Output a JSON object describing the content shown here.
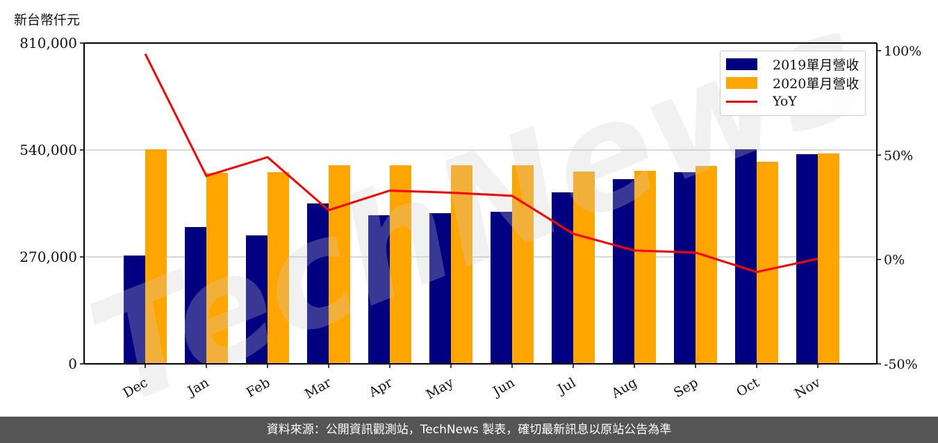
{
  "chart_data": {
    "type": "bar",
    "title": "",
    "unit_label": "新台幣仟元",
    "xlabel": "",
    "ylabel": "新台幣仟元",
    "y2label": "YoY",
    "categories": [
      "Dec",
      "Jan",
      "Feb",
      "Mar",
      "Apr",
      "May",
      "Jun",
      "Jul",
      "Aug",
      "Sep",
      "Oct",
      "Nov"
    ],
    "series": [
      {
        "name": "2019單月營收",
        "kind": "bar",
        "color": "#000080",
        "values": [
          273500,
          345400,
          324300,
          405000,
          375200,
          380400,
          383900,
          433000,
          466300,
          483900,
          541700,
          529400
        ]
      },
      {
        "name": "2020單月營收",
        "kind": "bar",
        "color": "#FFA500",
        "values": [
          541700,
          482100,
          483900,
          501400,
          501400,
          501400,
          501400,
          485600,
          487400,
          499700,
          510200,
          531200
        ]
      },
      {
        "name": "YoY",
        "kind": "line",
        "axis": "right",
        "color": "#FF0000",
        "values": [
          98.5,
          40.0,
          49.0,
          23.6,
          33.0,
          32.0,
          30.5,
          12.3,
          4.3,
          3.3,
          -6.0,
          0.3
        ]
      }
    ],
    "ylim": [
      0,
      810000
    ],
    "yticks": [
      0,
      270000,
      540000,
      810000
    ],
    "ytick_labels": [
      "0",
      "270,000",
      "540,000",
      "810,000"
    ],
    "y2lim": [
      -50,
      100
    ],
    "y2ticks": [
      -50,
      0,
      50,
      100
    ],
    "y2tick_labels": [
      "-50%",
      "0%",
      "50%",
      "100%"
    ],
    "grid": "horizontal",
    "legend_position": "upper right",
    "watermark": "TechNews"
  },
  "legend": {
    "items": [
      {
        "label": "2019單月營收",
        "color": "#000080",
        "type": "patch"
      },
      {
        "label": "2020單月營收",
        "color": "#FFA500",
        "type": "patch"
      },
      {
        "label": "YoY",
        "color": "#FF0000",
        "type": "line"
      }
    ]
  },
  "footer": {
    "text": "資料來源：公開資訊觀測站，TechNews 製表，確切最新訊息以原站公告為準"
  }
}
